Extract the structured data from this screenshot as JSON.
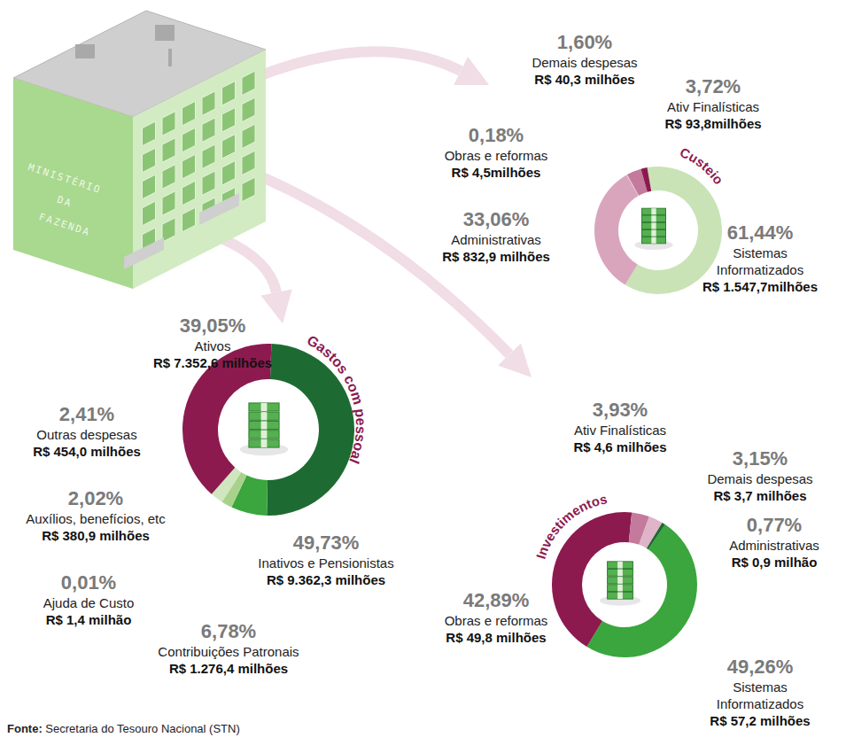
{
  "building_label": [
    "MINISTÉRIO",
    "DA",
    "FAZENDA"
  ],
  "source": {
    "label": "Fonte:",
    "text": "Secretaria do Tesouro Nacional (STN)"
  },
  "chart_data": [
    {
      "type": "pie",
      "title": "Custeio",
      "categories": [
        "Sistemas Informatizados",
        "Administrativas",
        "Obras e reformas",
        "Ativ Finalísticas",
        "Demais despesas"
      ],
      "values": [
        61.44,
        33.06,
        0.18,
        3.72,
        1.6
      ],
      "value_labels": [
        "61,44%",
        "33,06%",
        "0,18%",
        "3,72%",
        "1,60%"
      ],
      "amount_labels": [
        "R$ 1.547,7milhões",
        "R$ 832,9 milhões",
        "R$ 4,5milhões",
        "R$ 93,8milhões",
        "R$ 40,3 milhões"
      ],
      "colors": [
        "#c9e3b6",
        "#d9a5bd",
        "#e6c3d3",
        "#c47a9c",
        "#8c1a4f"
      ]
    },
    {
      "type": "pie",
      "title": "Gastos com pessoal",
      "categories": [
        "Inativos e Pensionistas",
        "Contribuições Patronais",
        "Ajuda de Custo",
        "Auxílios, benefícios, etc",
        "Outras despesas",
        "Ativos"
      ],
      "values": [
        49.73,
        6.78,
        0.01,
        2.02,
        2.41,
        39.05
      ],
      "value_labels": [
        "49,73%",
        "6,78%",
        "0,01%",
        "2,02%",
        "2,41%",
        "39,05%"
      ],
      "amount_labels": [
        "R$ 9.362,3 milhões",
        "R$ 1.276,4 milhões",
        "R$ 1,4 milhão",
        "R$ 380,9 milhões",
        "R$ 454,0 milhões",
        "R$ 7.352,6 milhões"
      ],
      "colors": [
        "#1d6b32",
        "#3aa63d",
        "#7cc46a",
        "#a8d28c",
        "#cfe6bf",
        "#8c1a4f"
      ]
    },
    {
      "type": "pie",
      "title": "Investimentos",
      "categories": [
        "Sistemas Informatizados",
        "Obras e reformas",
        "Ativ Finalísticas",
        "Demais despesas",
        "Administrativas"
      ],
      "values": [
        49.26,
        42.89,
        3.93,
        3.15,
        0.77
      ],
      "value_labels": [
        "49,26%",
        "42,89%",
        "3,93%",
        "3,15%",
        "0,77%"
      ],
      "amount_labels": [
        "R$ 57,2 milhões",
        "R$ 49,8 milhões",
        "R$ 4,6 milhões",
        "R$ 3,7 milhões",
        "R$ 0,9 milhão"
      ],
      "colors": [
        "#3aa63d",
        "#8c1a4f",
        "#c47a9c",
        "#e0b4c8",
        "#1d6b32"
      ]
    }
  ]
}
